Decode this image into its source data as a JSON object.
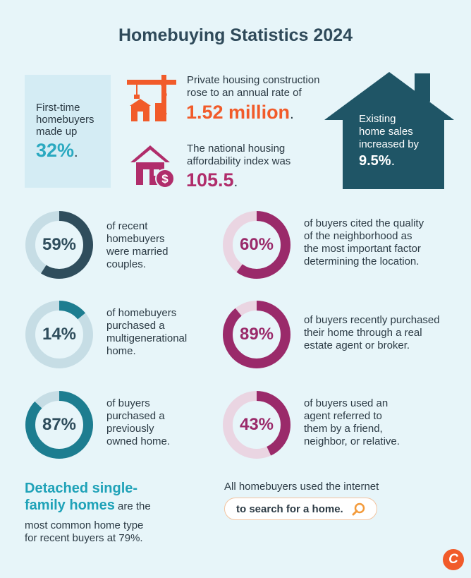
{
  "title": "Homebuying Statistics 2024",
  "first_time": {
    "line1": "First-time",
    "line2": "homebuyers",
    "line3": "made up",
    "value": "32%",
    "suffix": "."
  },
  "construction": {
    "line1": "Private housing construction",
    "line2": "rose to an annual rate of",
    "value": "1.52 million",
    "suffix": "."
  },
  "affordability": {
    "line1": "The national housing",
    "line2": "affordability index was",
    "value": "105.5",
    "suffix": "."
  },
  "existing_sales": {
    "line1": "Existing",
    "line2": "home sales",
    "line3": "increased by",
    "value": "9.5%",
    "suffix": "."
  },
  "colors": {
    "navy": "#2f4d5c",
    "dark_blue": "#1f5566",
    "teal": "#1d7d90",
    "cyan": "#2aa9c0",
    "orange": "#f15b2a",
    "magenta": "#9a2a6a",
    "track_blue": "#c6dde5",
    "track_pink": "#ead5e2"
  },
  "stats": [
    {
      "pct_label": "59%",
      "pct": 59,
      "lines": [
        "of recent",
        "homebuyers",
        "were married",
        "couples."
      ]
    },
    {
      "pct_label": "60%",
      "pct": 60,
      "lines": [
        "of buyers cited the quality",
        "of the neighborhood as",
        "the most important factor",
        "determining the location."
      ]
    },
    {
      "pct_label": "14%",
      "pct": 14,
      "lines": [
        "of homebuyers",
        "purchased a",
        "multigenerational",
        "home."
      ]
    },
    {
      "pct_label": "89%",
      "pct": 89,
      "lines": [
        "of buyers recently purchased",
        "their home through a real",
        "estate agent or broker."
      ]
    },
    {
      "pct_label": "87%",
      "pct": 87,
      "lines": [
        "of buyers",
        "purchased a",
        "previously",
        "owned home."
      ]
    },
    {
      "pct_label": "43%",
      "pct": 43,
      "lines": [
        "of buyers used an",
        "agent referred to",
        "them by a friend,",
        "neighbor, or relative."
      ]
    }
  ],
  "detached": {
    "highlight_line1": "Detached single-",
    "highlight_line2": "family homes",
    "rest": " are the",
    "line2": "most common home type",
    "line3": "for recent buyers at 79%."
  },
  "internet": {
    "text": "All homebuyers used the internet",
    "search_text": "to search for a home.",
    "icon": "search-icon"
  },
  "logo": "C"
}
